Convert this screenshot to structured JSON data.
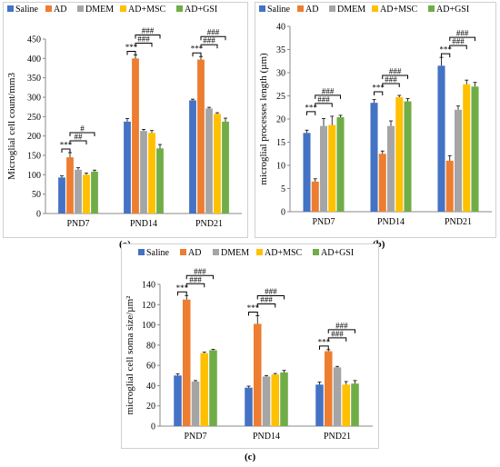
{
  "legend": [
    {
      "name": "Saline",
      "color": "#4472C4"
    },
    {
      "name": "AD",
      "color": "#ED7D31"
    },
    {
      "name": "DMEM",
      "color": "#A5A5A5"
    },
    {
      "name": "AD+MSC",
      "color": "#FFC000"
    },
    {
      "name": "AD+GSI",
      "color": "#70AD47"
    }
  ],
  "captions": {
    "a": "(a)",
    "b": "(b)",
    "c": "(c)"
  },
  "chart_data": [
    {
      "type": "bar",
      "panel": "a",
      "ylabel": "Microglial cell count/mm3",
      "ylim": [
        0,
        450
      ],
      "yticks": [
        0,
        50,
        100,
        150,
        200,
        250,
        300,
        350,
        400,
        450
      ],
      "categories": [
        "PND7",
        "PND14",
        "PND21"
      ],
      "series": [
        {
          "name": "Saline",
          "values": [
            93,
            237,
            292
          ],
          "errors": [
            4,
            8,
            3
          ]
        },
        {
          "name": "AD",
          "values": [
            145,
            400,
            397
          ],
          "errors": [
            12,
            9,
            8
          ]
        },
        {
          "name": "DMEM",
          "values": [
            113,
            213,
            271
          ],
          "errors": [
            5,
            4,
            3
          ]
        },
        {
          "name": "AD+MSC",
          "values": [
            100,
            208,
            257
          ],
          "errors": [
            4,
            6,
            3
          ]
        },
        {
          "name": "AD+GSI",
          "values": [
            108,
            168,
            237
          ],
          "errors": [
            4,
            10,
            9
          ]
        }
      ],
      "annotations": [
        {
          "category": 0,
          "label": "***",
          "from": 0,
          "to": 1,
          "level": 1
        },
        {
          "category": 0,
          "label": "##",
          "from": 1,
          "to": 3,
          "level": 2
        },
        {
          "category": 0,
          "label": "#",
          "from": 1,
          "to": 4,
          "level": 3
        },
        {
          "category": 1,
          "label": "***",
          "from": 0,
          "to": 1,
          "level": 1
        },
        {
          "category": 1,
          "label": "###",
          "from": 1,
          "to": 3,
          "level": 2
        },
        {
          "category": 1,
          "label": "###",
          "from": 1,
          "to": 4,
          "level": 3
        },
        {
          "category": 2,
          "label": "***",
          "from": 0,
          "to": 1,
          "level": 1
        },
        {
          "category": 2,
          "label": "###",
          "from": 1,
          "to": 3,
          "level": 2
        },
        {
          "category": 2,
          "label": "###",
          "from": 1,
          "to": 4,
          "level": 3
        }
      ]
    },
    {
      "type": "bar",
      "panel": "b",
      "ylabel": "microglial processes length (µm)",
      "ylim": [
        0,
        40
      ],
      "yticks": [
        0,
        5,
        10,
        15,
        20,
        25,
        30,
        35,
        40
      ],
      "categories": [
        "PND7",
        "PND14",
        "PND21"
      ],
      "series": [
        {
          "name": "Saline",
          "values": [
            17,
            23.5,
            31.5
          ],
          "errors": [
            0.6,
            0.7,
            1.8
          ]
        },
        {
          "name": "AD",
          "values": [
            6.5,
            12.5,
            11
          ],
          "errors": [
            0.6,
            0.6,
            1.1
          ]
        },
        {
          "name": "DMEM",
          "values": [
            18.5,
            18.5,
            22
          ],
          "errors": [
            1.6,
            1.1,
            0.8
          ]
        },
        {
          "name": "AD+MSC",
          "values": [
            18.7,
            24.7,
            27.5
          ],
          "errors": [
            1.9,
            0.4,
            0.9
          ]
        },
        {
          "name": "AD+GSI",
          "values": [
            20.4,
            23.8,
            27
          ],
          "errors": [
            0.4,
            0.6,
            0.9
          ]
        }
      ],
      "annotations": [
        {
          "category": 0,
          "label": "***",
          "from": 0,
          "to": 1,
          "level": 1
        },
        {
          "category": 0,
          "label": "###",
          "from": 1,
          "to": 3,
          "level": 2
        },
        {
          "category": 0,
          "label": "###",
          "from": 1,
          "to": 4,
          "level": 3
        },
        {
          "category": 1,
          "label": "***",
          "from": 0,
          "to": 1,
          "level": 1
        },
        {
          "category": 1,
          "label": "###",
          "from": 1,
          "to": 3,
          "level": 2
        },
        {
          "category": 1,
          "label": "###",
          "from": 1,
          "to": 4,
          "level": 3
        },
        {
          "category": 2,
          "label": "***",
          "from": 0,
          "to": 1,
          "level": 1
        },
        {
          "category": 2,
          "label": "###",
          "from": 1,
          "to": 3,
          "level": 2
        },
        {
          "category": 2,
          "label": "###",
          "from": 1,
          "to": 4,
          "level": 3
        }
      ]
    },
    {
      "type": "bar",
      "panel": "c",
      "ylabel": "microglial cell soma size/µm²",
      "ylim": [
        0,
        140
      ],
      "yticks": [
        0,
        20,
        40,
        60,
        80,
        100,
        120,
        140
      ],
      "categories": [
        "PND7",
        "PND14",
        "PND21"
      ],
      "series": [
        {
          "name": "Saline",
          "values": [
            50,
            38,
            41
          ],
          "errors": [
            1.5,
            1.5,
            2.5
          ]
        },
        {
          "name": "AD",
          "values": [
            125,
            101,
            74
          ],
          "errors": [
            4,
            8,
            1.5
          ]
        },
        {
          "name": "DMEM",
          "values": [
            44,
            49,
            58
          ],
          "errors": [
            1,
            1,
            1
          ]
        },
        {
          "name": "AD+MSC",
          "values": [
            72,
            51,
            41
          ],
          "errors": [
            1,
            1,
            3
          ]
        },
        {
          "name": "AD+GSI",
          "values": [
            75,
            53,
            42
          ],
          "errors": [
            0.8,
            2,
            3
          ]
        }
      ],
      "annotations": [
        {
          "category": 0,
          "label": "***",
          "from": 0,
          "to": 1,
          "level": 1
        },
        {
          "category": 0,
          "label": "###",
          "from": 1,
          "to": 3,
          "level": 2
        },
        {
          "category": 0,
          "label": "###",
          "from": 1,
          "to": 4,
          "level": 3
        },
        {
          "category": 1,
          "label": "***",
          "from": 0,
          "to": 1,
          "level": 1
        },
        {
          "category": 1,
          "label": "###",
          "from": 1,
          "to": 3,
          "level": 2
        },
        {
          "category": 1,
          "label": "###",
          "from": 1,
          "to": 4,
          "level": 3
        },
        {
          "category": 2,
          "label": "***",
          "from": 0,
          "to": 1,
          "level": 1
        },
        {
          "category": 2,
          "label": "###",
          "from": 1,
          "to": 3,
          "level": 2
        },
        {
          "category": 2,
          "label": "###",
          "from": 1,
          "to": 4,
          "level": 3
        }
      ]
    }
  ]
}
